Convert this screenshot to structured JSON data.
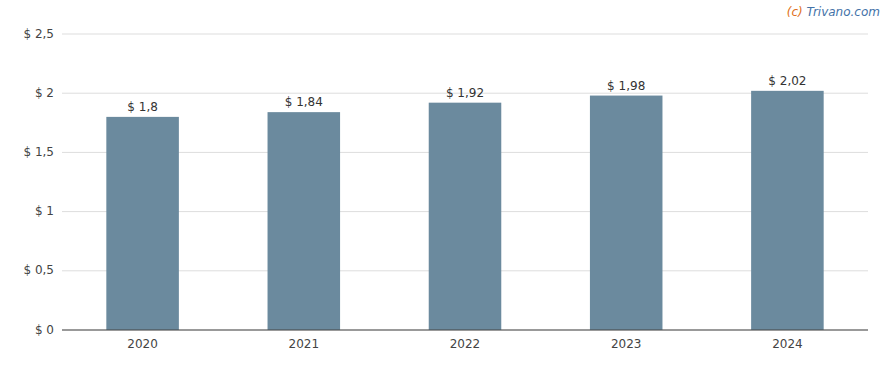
{
  "chart_data": {
    "type": "bar",
    "categories": [
      2020,
      2021,
      2022,
      2023,
      2024
    ],
    "values": [
      1.8,
      1.84,
      1.92,
      1.98,
      2.02
    ],
    "value_labels": [
      "$ 1,8",
      "$ 1,84",
      "$ 1,92",
      "$ 1,98",
      "$ 2,02"
    ],
    "data_labels": true,
    "color": "#6b8a9e",
    "ylim": [
      0,
      2.5
    ],
    "yticks": [
      {
        "value": 0,
        "label": "$ 0"
      },
      {
        "value": 0.5,
        "label": "$ 0,5"
      },
      {
        "value": 1.0,
        "label": "$ 1"
      },
      {
        "value": 1.5,
        "label": "$ 1,5"
      },
      {
        "value": 2.0,
        "label": "$ 2"
      },
      {
        "value": 2.5,
        "label": "$ 2,5"
      }
    ],
    "grid": true,
    "annotations": [
      {
        "text": "(c)",
        "color": "#e07020"
      },
      {
        "text": " Trivano.com",
        "color": "#4472a8"
      }
    ]
  }
}
